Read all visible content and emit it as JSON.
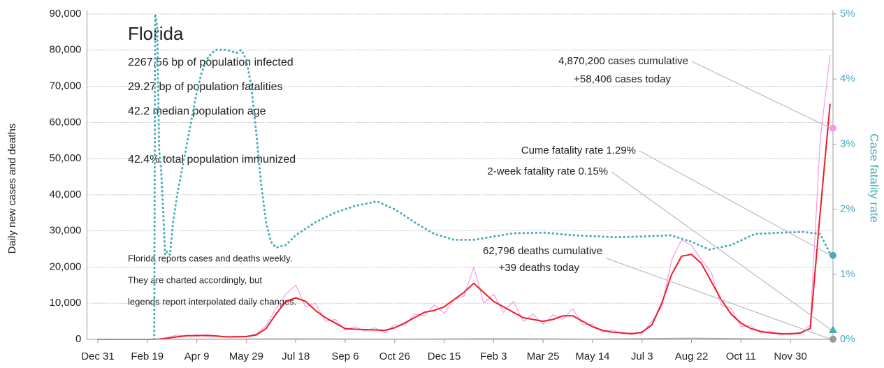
{
  "chart_data": {
    "type": "line",
    "title": "Florida",
    "info": [
      "2267.56 bp of population infected",
      "29.27 bp of population fatalities",
      "42.2 median population age",
      "42.4% total population immunized"
    ],
    "notes": [
      "Florida reports cases and deaths weekly.",
      "They are charted accordingly, but",
      "legends report interpolated daily changes."
    ],
    "ylabel": "Daily new cases and deaths",
    "y2label": "Case fatality rate",
    "x": [
      0,
      10,
      20,
      30,
      40,
      50,
      60,
      70,
      80,
      90,
      100,
      110,
      120,
      130,
      140,
      150,
      160,
      170,
      180,
      190,
      200,
      210,
      220,
      230,
      240,
      250,
      260,
      270,
      280,
      290,
      300,
      310,
      320,
      330,
      340,
      350,
      360,
      370,
      380,
      390,
      400,
      410,
      420,
      430,
      440,
      450,
      460,
      470,
      480,
      490,
      500,
      510,
      520,
      530,
      540,
      550,
      560,
      570,
      580,
      590,
      600,
      610,
      620,
      630,
      640,
      650,
      660,
      670,
      680,
      690,
      700,
      710,
      720,
      730,
      740
    ],
    "xlim": [
      -11,
      743
    ],
    "xticks": [
      {
        "value": 0,
        "label": "Dec 31"
      },
      {
        "value": 50,
        "label": "Feb 19"
      },
      {
        "value": 100,
        "label": "Apr 9"
      },
      {
        "value": 150,
        "label": "May 29"
      },
      {
        "value": 200,
        "label": "Jul 18"
      },
      {
        "value": 250,
        "label": "Sep 6"
      },
      {
        "value": 300,
        "label": "Oct 26"
      },
      {
        "value": 350,
        "label": "Dec 15"
      },
      {
        "value": 400,
        "label": "Feb 3"
      },
      {
        "value": 450,
        "label": "Mar 25"
      },
      {
        "value": 500,
        "label": "May 14"
      },
      {
        "value": 550,
        "label": "Jul 3"
      },
      {
        "value": 600,
        "label": "Aug 22"
      },
      {
        "value": 650,
        "label": "Oct 11"
      },
      {
        "value": 700,
        "label": "Nov 30"
      }
    ],
    "ylim": [
      0,
      90000
    ],
    "yticks": [
      0,
      {
        "value": 10000,
        "label": "10,000"
      },
      {
        "value": 20000,
        "label": "20,000"
      },
      {
        "value": 30000,
        "label": "30,000"
      },
      {
        "value": 40000,
        "label": "40,000"
      },
      {
        "value": 50000,
        "label": "50,000"
      },
      {
        "value": 60000,
        "label": "60,000"
      },
      {
        "value": 70000,
        "label": "70,000"
      },
      {
        "value": 80000,
        "label": "80,000"
      },
      {
        "value": 90000,
        "label": "90,000"
      }
    ],
    "y2lim": [
      0,
      5
    ],
    "y2ticks": [
      {
        "value": 0,
        "label": "0%"
      },
      {
        "value": 1,
        "label": "1%"
      },
      {
        "value": 2,
        "label": "2%"
      },
      {
        "value": 3,
        "label": "3%"
      },
      {
        "value": 4,
        "label": "4%"
      },
      {
        "value": 5,
        "label": "5%"
      }
    ],
    "grid": true,
    "series": [
      {
        "color": "#f59ae8",
        "values": [
          0,
          0,
          0,
          0,
          0,
          0,
          80,
          500,
          1200,
          900,
          1300,
          800,
          1100,
          600,
          900,
          700,
          1500,
          3800,
          8500,
          12500,
          15000,
          9000,
          10000,
          5000,
          5500,
          2500,
          3500,
          2200,
          3200,
          1800,
          4000,
          3800,
          7000,
          6500,
          9500,
          7200,
          11000,
          12000,
          20000,
          10000,
          12500,
          7500,
          10500,
          5000,
          7000,
          4200,
          6800,
          5500,
          8500,
          4000,
          4200,
          2000,
          2600,
          1500,
          1900,
          1600,
          5000,
          9000,
          22000,
          27500,
          26000,
          22000,
          18500,
          9500,
          8500,
          3500,
          3800,
          1700,
          2300,
          1200,
          1800,
          1400,
          4000,
          55000,
          78500
        ]
      },
      {
        "color": "#ee1c25",
        "values": [
          0,
          0,
          0,
          0,
          0,
          0,
          50,
          300,
          700,
          1000,
          1000,
          1100,
          900,
          700,
          700,
          800,
          1200,
          3000,
          7000,
          10500,
          11500,
          10500,
          8000,
          6000,
          4500,
          3000,
          2800,
          2700,
          2600,
          2500,
          3200,
          4500,
          6000,
          7500,
          8000,
          9000,
          11000,
          13000,
          15500,
          13000,
          10500,
          9000,
          7500,
          6000,
          5500,
          5000,
          5500,
          6500,
          6500,
          5000,
          3500,
          2500,
          2000,
          1800,
          1500,
          2000,
          4000,
          10000,
          18000,
          23000,
          23500,
          21000,
          16000,
          11000,
          7000,
          4500,
          3000,
          2200,
          1800,
          1600,
          1500,
          1800,
          3000,
          35000,
          65000
        ]
      },
      {
        "color": "#aaaaaa",
        "x": [
          0,
          100,
          200,
          300,
          400,
          500,
          600,
          700,
          740
        ],
        "values": [
          0,
          50,
          150,
          80,
          180,
          80,
          300,
          60,
          39
        ]
      },
      {
        "color": "#4aacb8",
        "axis": "y2",
        "x": [
          57,
          58,
          60,
          62,
          64,
          66,
          68,
          70,
          73,
          76,
          80,
          85,
          90,
          95,
          100,
          105,
          110,
          115,
          120,
          130,
          140,
          145,
          150,
          155,
          160,
          165,
          170,
          175,
          180,
          190,
          200,
          220,
          240,
          260,
          282,
          300,
          320,
          340,
          360,
          381,
          400,
          420,
          452,
          480,
          523,
          550,
          579,
          600,
          618,
          640,
          664,
          690,
          713,
          730,
          741
        ],
        "values": [
          0,
          5,
          4.8,
          2.9,
          2.6,
          2.0,
          1.3,
          1.35,
          1.3,
          1.8,
          2.2,
          2.6,
          3.0,
          3.4,
          3.8,
          4.1,
          4.3,
          4.4,
          4.45,
          4.45,
          4.4,
          4.45,
          4.3,
          3.9,
          3.2,
          2.4,
          1.8,
          1.5,
          1.41,
          1.45,
          1.6,
          1.8,
          1.95,
          2.05,
          2.12,
          2.0,
          1.8,
          1.62,
          1.53,
          1.53,
          1.58,
          1.63,
          1.64,
          1.6,
          1.57,
          1.58,
          1.6,
          1.5,
          1.38,
          1.45,
          1.62,
          1.64,
          1.65,
          1.62,
          1.29
        ]
      }
    ],
    "markers": [
      {
        "value": 58406,
        "axis": "y",
        "shape": "circle",
        "color": "#f59ae8",
        "lines": [
          "4,870,200 cases cumulative",
          "+58,406 cases today"
        ]
      },
      {
        "value": 1.29,
        "axis": "y2",
        "shape": "circle",
        "color": "#4aacb8",
        "lines": [
          "Cume fatality rate 1.29%"
        ]
      },
      {
        "value": 0.15,
        "axis": "y2",
        "shape": "triangle",
        "color": "#4aacb8",
        "lines": [
          "2-week fatality rate 0.15%"
        ]
      },
      {
        "value": 39,
        "axis": "y",
        "shape": "circle",
        "color": "#999999",
        "lines": [
          "62,796 deaths cumulative",
          "+39 deaths today"
        ]
      }
    ]
  }
}
